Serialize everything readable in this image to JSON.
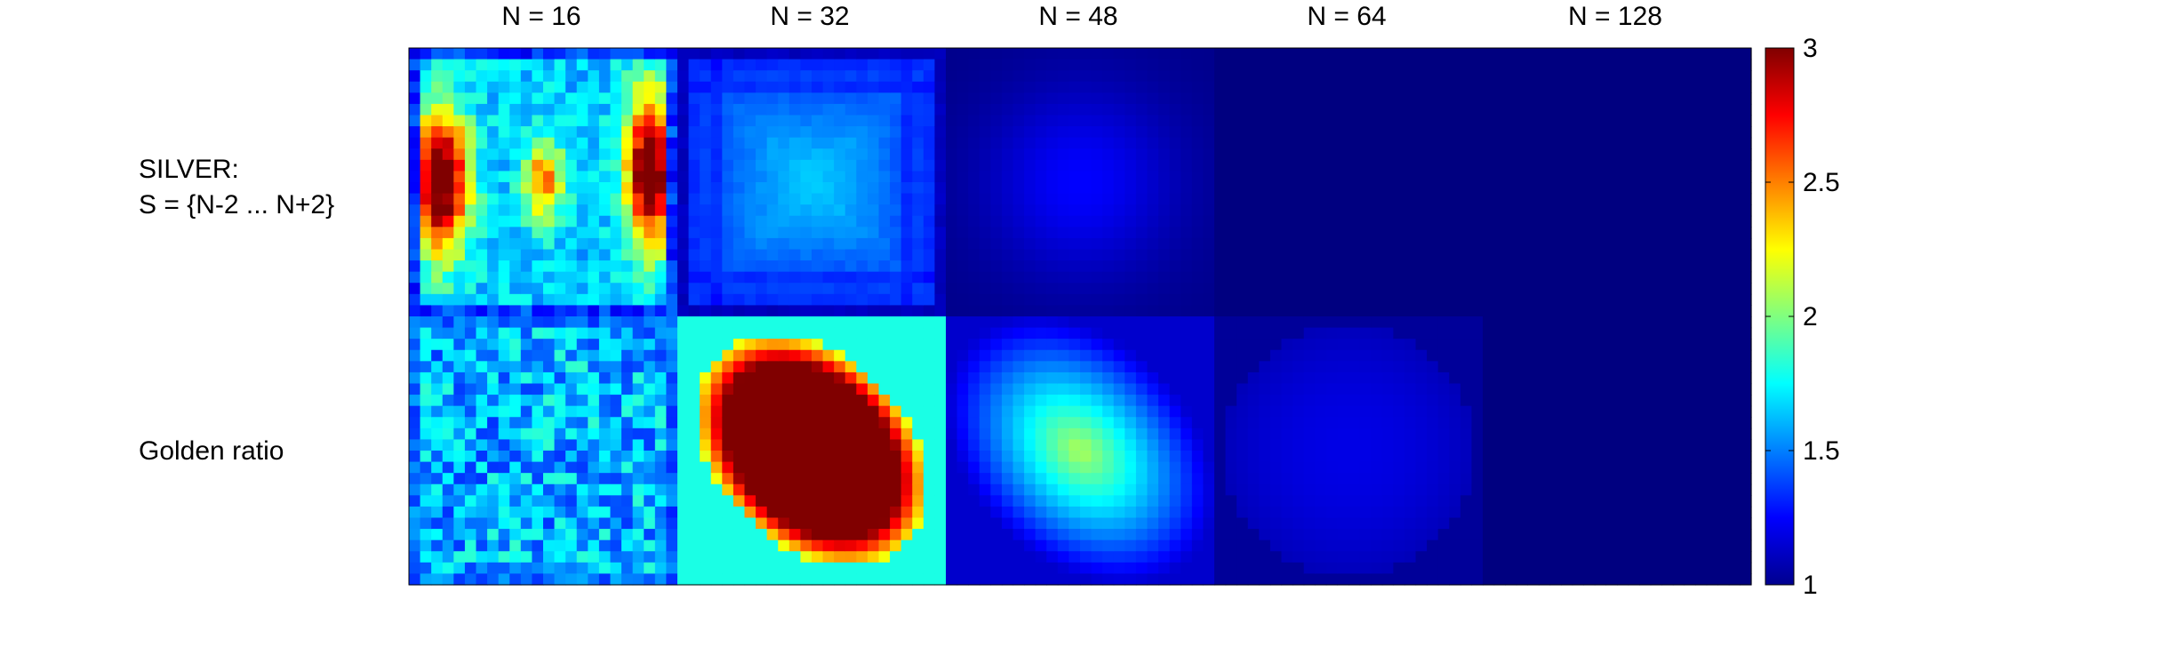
{
  "chart_data": {
    "type": "heatmap",
    "title": "",
    "columns": [
      "N = 16",
      "N = 32",
      "N = 48",
      "N = 64",
      "N = 128"
    ],
    "rows": [
      {
        "label_lines": [
          "SILVER:",
          "S = {N-2 ... N+2}"
        ],
        "cells": [
          {
            "pattern": "noisy-lobes",
            "center": 2.3,
            "edge": 1.5,
            "peak": 3.0
          },
          {
            "pattern": "grid-soft",
            "center": 1.65,
            "edge": 1.1
          },
          {
            "pattern": "soft-blob",
            "center": 1.25,
            "edge": 1.02
          },
          {
            "pattern": "flat",
            "center": 1.0,
            "edge": 1.0
          },
          {
            "pattern": "flat",
            "center": 1.0,
            "edge": 1.0
          }
        ]
      },
      {
        "label_lines": [
          "Golden ratio"
        ],
        "cells": [
          {
            "pattern": "noisy-flat",
            "center": 1.6,
            "edge": 1.3
          },
          {
            "pattern": "diamond",
            "center": 3.0,
            "edge": 1.5
          },
          {
            "pattern": "diamond",
            "center": 2.1,
            "edge": 1.15
          },
          {
            "pattern": "circle",
            "center": 1.2,
            "edge": 1.05
          },
          {
            "pattern": "flat",
            "center": 1.0,
            "edge": 1.0
          }
        ]
      }
    ],
    "colorbar": {
      "colormap": "jet",
      "range": [
        1,
        3
      ],
      "ticks": [
        "1",
        "1.5",
        "2",
        "2.5",
        "3"
      ],
      "tick_values": [
        1,
        1.5,
        2,
        2.5,
        3
      ]
    }
  }
}
